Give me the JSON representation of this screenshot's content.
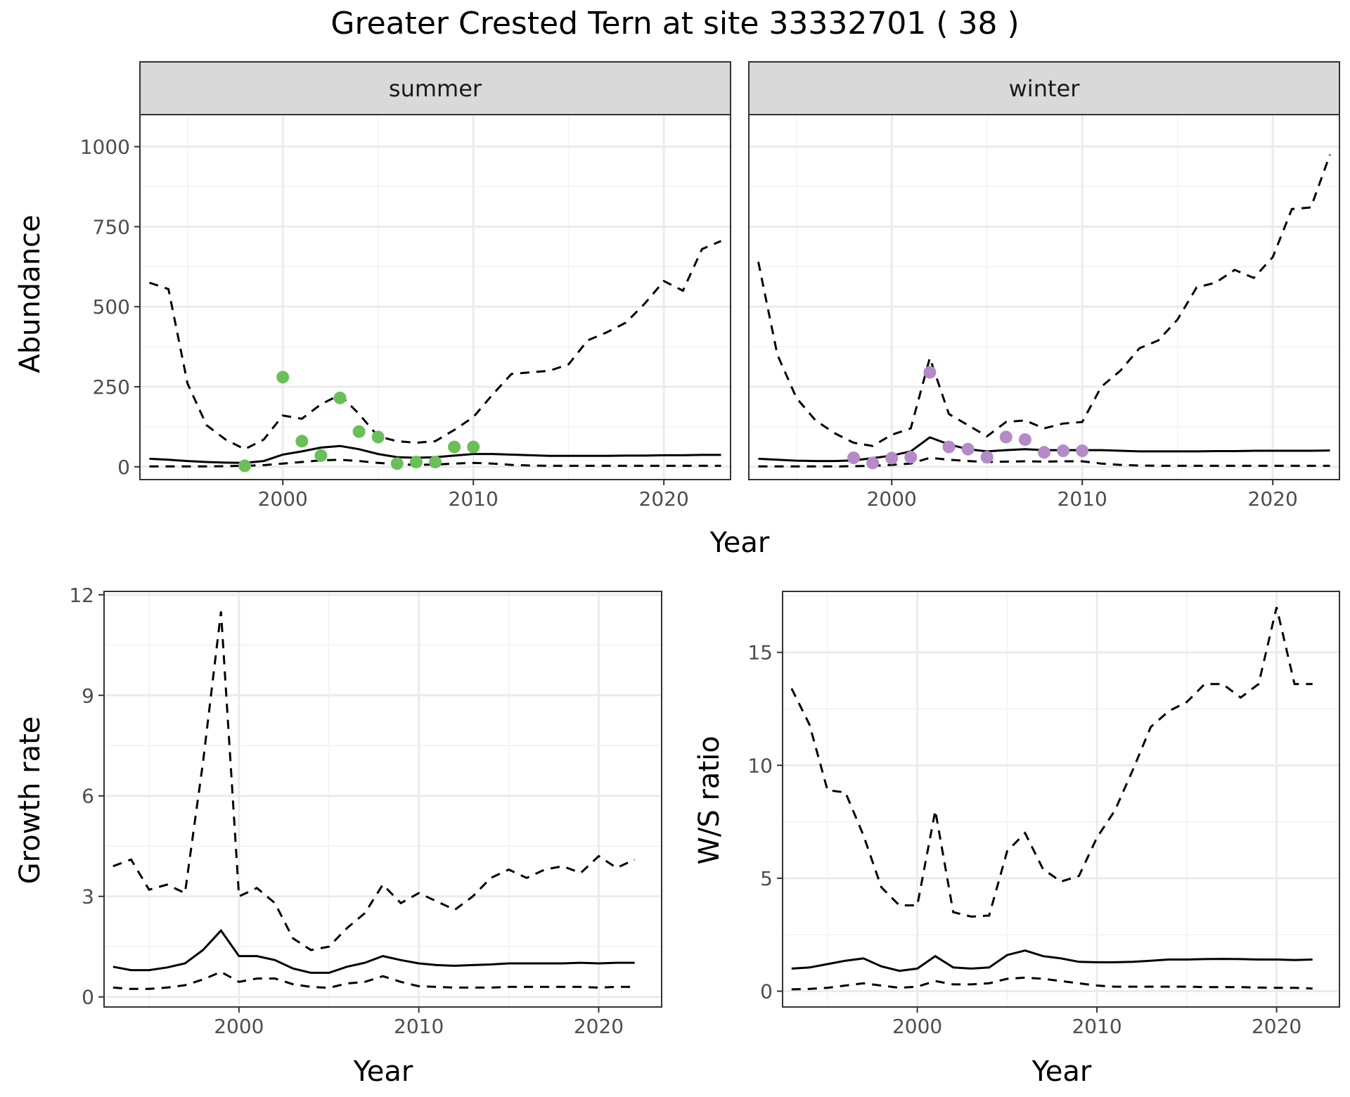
{
  "title": "Greater Crested Tern at site 33332701 ( 38 )",
  "colors": {
    "summer_points": "#6abf59",
    "winter_points": "#b48ac7",
    "lines": "#000000"
  },
  "chart_data": [
    {
      "id": "abundance",
      "type": "line",
      "facets": [
        "summer",
        "winter"
      ],
      "xlabel": "Year",
      "ylabel": "Abundance",
      "xlim": [
        1992.5,
        2023.5
      ],
      "ylim": [
        -40,
        1100
      ],
      "xticks": [
        "2000",
        "2010",
        "2020"
      ],
      "yticks": [
        "0",
        "250",
        "500",
        "750",
        "1000"
      ],
      "x": [
        1993,
        1994,
        1995,
        1996,
        1997,
        1998,
        1999,
        2000,
        2001,
        2002,
        2003,
        2004,
        2005,
        2006,
        2007,
        2008,
        2009,
        2010,
        2011,
        2012,
        2013,
        2014,
        2015,
        2016,
        2017,
        2018,
        2019,
        2020,
        2021,
        2022,
        2023
      ],
      "panels": {
        "summer": {
          "estimate": [
            25,
            22,
            18,
            15,
            13,
            12,
            18,
            38,
            48,
            60,
            65,
            55,
            40,
            30,
            28,
            30,
            35,
            40,
            40,
            38,
            36,
            34,
            34,
            34,
            34,
            35,
            35,
            36,
            36,
            37,
            37
          ],
          "lower": [
            1,
            1,
            1,
            1,
            2,
            3,
            5,
            10,
            15,
            20,
            22,
            18,
            12,
            8,
            6,
            7,
            10,
            12,
            10,
            6,
            4,
            3,
            3,
            3,
            3,
            3,
            3,
            3,
            3,
            3,
            3
          ],
          "upper": [
            575,
            555,
            260,
            130,
            85,
            55,
            85,
            160,
            150,
            195,
            225,
            165,
            95,
            80,
            75,
            80,
            115,
            155,
            225,
            290,
            295,
            300,
            320,
            395,
            420,
            450,
            510,
            580,
            550,
            680,
            705
          ],
          "points_x": [
            1998,
            2000,
            2001,
            2002,
            2003,
            2004,
            2005,
            2006,
            2007,
            2008,
            2009,
            2010
          ],
          "points_y": [
            3,
            280,
            80,
            35,
            215,
            110,
            93,
            10,
            15,
            15,
            62,
            62
          ]
        },
        "winter": {
          "estimate": [
            25,
            22,
            19,
            18,
            18,
            20,
            27,
            35,
            48,
            92,
            70,
            55,
            48,
            52,
            55,
            52,
            52,
            52,
            52,
            50,
            48,
            48,
            48,
            48,
            49,
            49,
            50,
            50,
            50,
            50,
            51
          ],
          "lower": [
            1,
            1,
            1,
            1,
            1,
            2,
            3,
            6,
            10,
            28,
            22,
            18,
            15,
            16,
            17,
            16,
            17,
            17,
            10,
            6,
            4,
            3,
            3,
            3,
            3,
            3,
            3,
            3,
            3,
            3,
            3
          ],
          "upper": [
            640,
            350,
            215,
            145,
            105,
            75,
            65,
            100,
            120,
            340,
            165,
            130,
            95,
            140,
            145,
            120,
            135,
            140,
            250,
            300,
            370,
            395,
            460,
            560,
            575,
            615,
            590,
            655,
            805,
            810,
            975
          ],
          "points_x": [
            1998,
            1999,
            2000,
            2001,
            2002,
            2003,
            2004,
            2005,
            2006,
            2007,
            2008,
            2009,
            2010
          ],
          "points_y": [
            28,
            12,
            27,
            30,
            295,
            62,
            55,
            30,
            93,
            85,
            45,
            50,
            50
          ]
        }
      }
    },
    {
      "id": "growth",
      "type": "line",
      "xlabel": "Year",
      "ylabel": "Growth rate",
      "xlim": [
        1992.5,
        2023.5
      ],
      "ylim": [
        -0.3,
        12.1
      ],
      "xticks": [
        "2000",
        "2010",
        "2020"
      ],
      "yticks": [
        "0",
        "3",
        "6",
        "9",
        "12"
      ],
      "x": [
        1993,
        1994,
        1995,
        1996,
        1997,
        1998,
        1999,
        2000,
        2001,
        2002,
        2003,
        2004,
        2005,
        2006,
        2007,
        2008,
        2009,
        2010,
        2011,
        2012,
        2013,
        2014,
        2015,
        2016,
        2017,
        2018,
        2019,
        2020,
        2021,
        2022
      ],
      "estimate": [
        0.9,
        0.8,
        0.8,
        0.88,
        1.0,
        1.4,
        1.98,
        1.22,
        1.22,
        1.1,
        0.85,
        0.72,
        0.72,
        0.9,
        1.02,
        1.22,
        1.1,
        1.0,
        0.95,
        0.93,
        0.95,
        0.97,
        1.0,
        1.0,
        1.0,
        1.0,
        1.02,
        1.0,
        1.02,
        1.02
      ],
      "lower": [
        0.28,
        0.24,
        0.24,
        0.28,
        0.35,
        0.52,
        0.75,
        0.45,
        0.55,
        0.55,
        0.38,
        0.3,
        0.27,
        0.4,
        0.45,
        0.62,
        0.45,
        0.32,
        0.3,
        0.28,
        0.28,
        0.28,
        0.3,
        0.3,
        0.3,
        0.3,
        0.3,
        0.28,
        0.3,
        0.3
      ],
      "upper": [
        3.9,
        4.1,
        3.2,
        3.35,
        3.1,
        7.0,
        11.5,
        3.0,
        3.25,
        2.8,
        1.75,
        1.4,
        1.5,
        2.05,
        2.5,
        3.35,
        2.8,
        3.1,
        2.85,
        2.6,
        3.0,
        3.55,
        3.8,
        3.55,
        3.8,
        3.9,
        3.7,
        4.2,
        3.85,
        4.1
      ]
    },
    {
      "id": "ratio",
      "type": "line",
      "xlabel": "Year",
      "ylabel": "W/S ratio",
      "xlim": [
        1992.5,
        2023.5
      ],
      "ylim": [
        -0.7,
        17.7
      ],
      "xticks": [
        "2000",
        "2010",
        "2020"
      ],
      "yticks": [
        "0",
        "5",
        "10",
        "15"
      ],
      "x": [
        1993,
        1994,
        1995,
        1996,
        1997,
        1998,
        1999,
        2000,
        2001,
        2002,
        2003,
        2004,
        2005,
        2006,
        2007,
        2008,
        2009,
        2010,
        2011,
        2012,
        2013,
        2014,
        2015,
        2016,
        2017,
        2018,
        2019,
        2020,
        2021,
        2022
      ],
      "estimate": [
        1.0,
        1.05,
        1.2,
        1.35,
        1.45,
        1.1,
        0.9,
        1.0,
        1.55,
        1.05,
        1.0,
        1.05,
        1.6,
        1.8,
        1.55,
        1.45,
        1.3,
        1.28,
        1.28,
        1.3,
        1.35,
        1.4,
        1.4,
        1.42,
        1.43,
        1.42,
        1.4,
        1.4,
        1.38,
        1.4
      ],
      "lower": [
        0.08,
        0.1,
        0.15,
        0.25,
        0.35,
        0.25,
        0.15,
        0.2,
        0.45,
        0.3,
        0.3,
        0.35,
        0.55,
        0.6,
        0.55,
        0.45,
        0.35,
        0.25,
        0.2,
        0.2,
        0.2,
        0.2,
        0.2,
        0.18,
        0.18,
        0.18,
        0.16,
        0.15,
        0.15,
        0.12
      ],
      "upper": [
        13.4,
        11.8,
        8.9,
        8.8,
        6.9,
        4.6,
        3.8,
        3.8,
        8.0,
        3.5,
        3.3,
        3.35,
        6.2,
        7.0,
        5.4,
        4.85,
        5.1,
        6.8,
        8.0,
        9.8,
        11.7,
        12.4,
        12.8,
        13.6,
        13.6,
        13.0,
        13.6,
        17.0,
        13.6,
        13.6
      ]
    }
  ]
}
